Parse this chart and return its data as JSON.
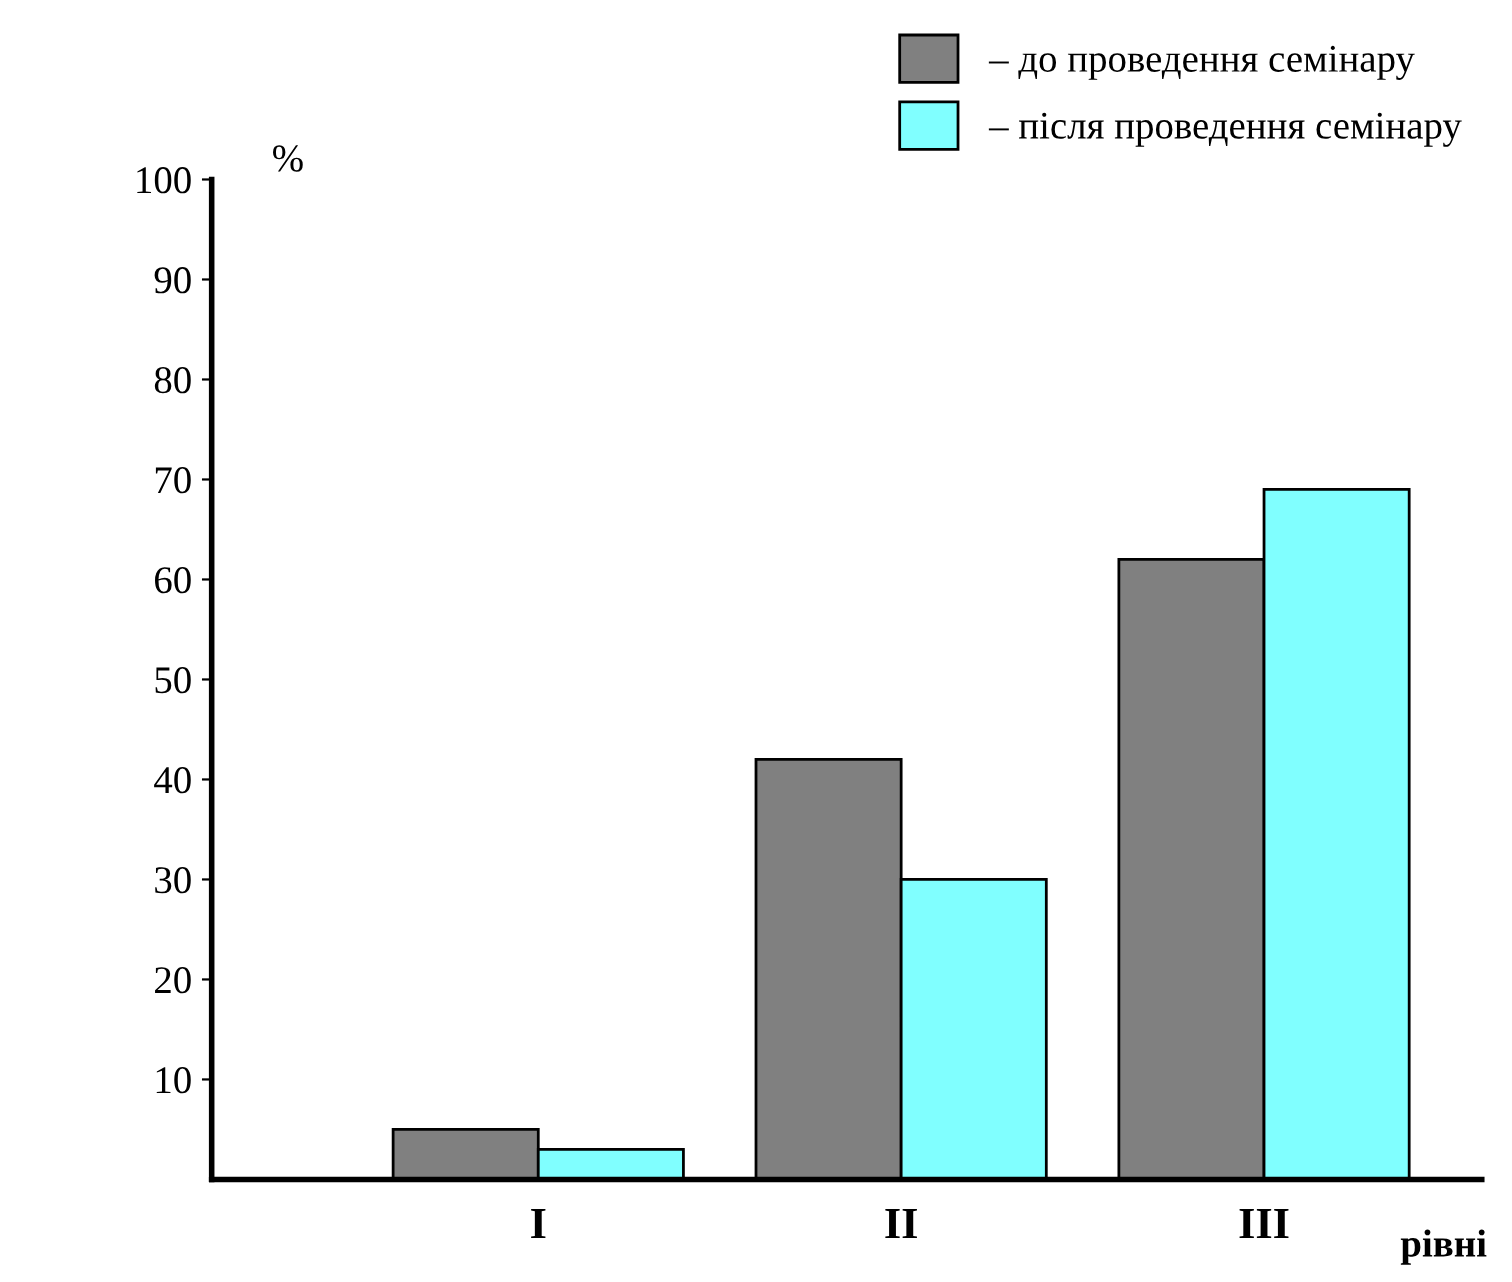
{
  "chart_data": {
    "type": "bar",
    "categories": [
      "I",
      "II",
      "III"
    ],
    "series": [
      {
        "name": "– до проведення семінару",
        "color": "#808080",
        "values": [
          5,
          42,
          62
        ]
      },
      {
        "name": "– після проведення семінару",
        "color": "#80ffff",
        "values": [
          3,
          30,
          69
        ]
      }
    ],
    "ylim": [
      0,
      100
    ],
    "yticks": [
      10,
      20,
      30,
      40,
      50,
      60,
      70,
      80,
      90,
      100
    ],
    "xlabel": "рівні",
    "ylabel": "%",
    "grid": false,
    "legend": "top right"
  }
}
